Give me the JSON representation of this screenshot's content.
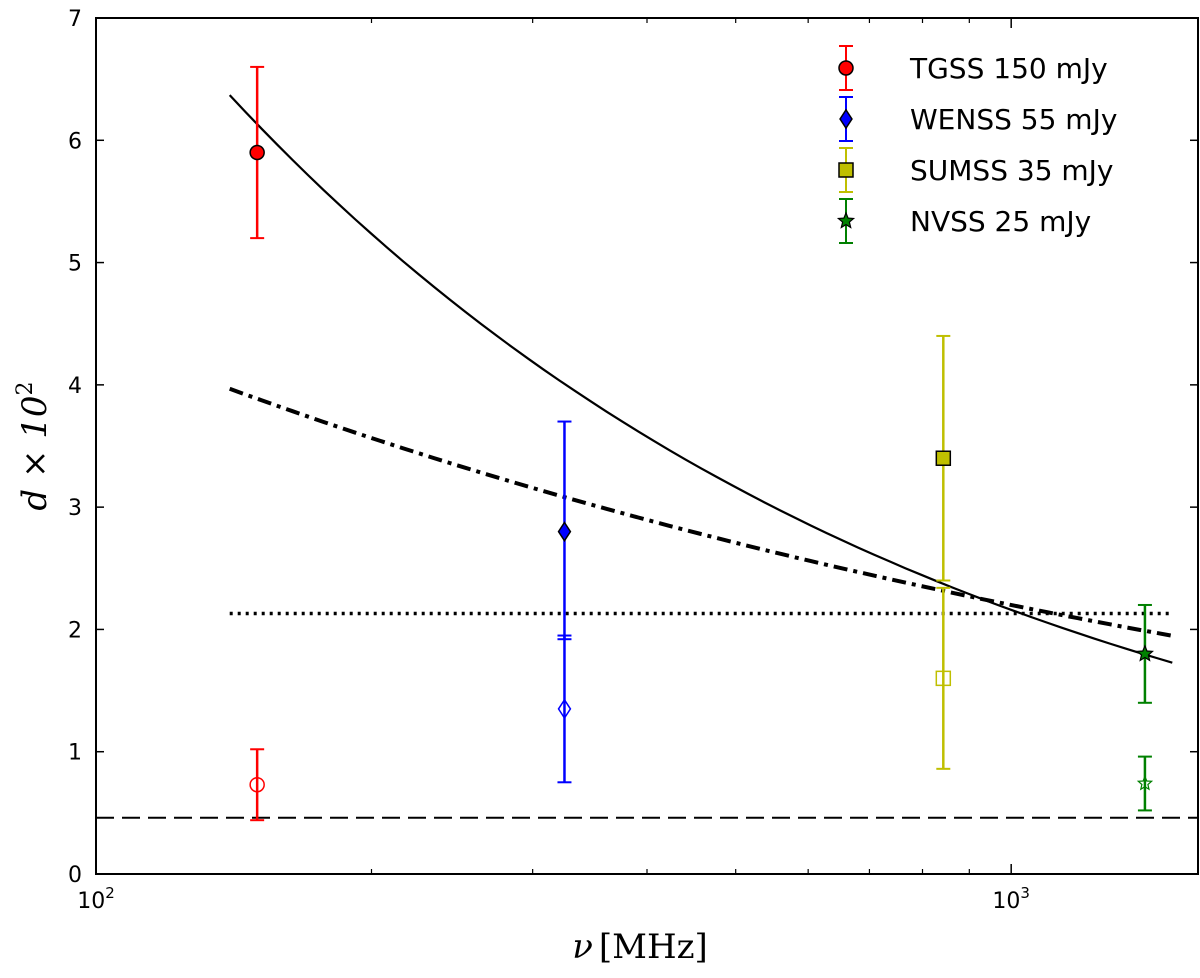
{
  "chart_data": {
    "type": "scatter",
    "xscale": "log",
    "xlim": [
      100,
      1600
    ],
    "ylim": [
      0,
      7
    ],
    "xlabel": "ν [MHz]",
    "xlabel_parts": {
      "symbol": "ν",
      "unit": "[MHz]"
    },
    "ylabel": "d × 10²",
    "ylabel_parts": {
      "main": "d × 10",
      "sup": "2"
    },
    "yticks": [
      {
        "value": 0,
        "label": "0"
      },
      {
        "value": 1,
        "label": "1"
      },
      {
        "value": 2,
        "label": "2"
      },
      {
        "value": 3,
        "label": "3"
      },
      {
        "value": 4,
        "label": "4"
      },
      {
        "value": 5,
        "label": "5"
      },
      {
        "value": 6,
        "label": "6"
      },
      {
        "value": 7,
        "label": "7"
      }
    ],
    "xticks_major": [
      {
        "value": 100,
        "base": "10",
        "exp": "2"
      },
      {
        "value": 1000,
        "base": "10",
        "exp": "3"
      }
    ],
    "xticks_minor": [
      200,
      300,
      400,
      500,
      600,
      700,
      800,
      900
    ],
    "legend_position": "top-right",
    "series": [
      {
        "name": "TGSS 150 mJy",
        "color": "#ff0000",
        "marker": "circle",
        "x": 150,
        "y": 5.9,
        "yerr_low": 0.7,
        "yerr_high": 0.7,
        "open_y": 0.73,
        "open_err_low": 0.29,
        "open_err_high": 0.29
      },
      {
        "name": "WENSS 55 mJy",
        "color": "#0000ff",
        "marker": "diamond",
        "x": 325,
        "y": 2.8,
        "yerr_low": 0.88,
        "yerr_high": 0.9,
        "open_y": 1.35,
        "open_err_low": 0.6,
        "open_err_high": 0.6
      },
      {
        "name": "SUMSS 35 mJy",
        "color": "#bfbf00",
        "marker": "square",
        "x": 843,
        "y": 3.4,
        "yerr_low": 1.0,
        "yerr_high": 1.0,
        "open_y": 1.6,
        "open_err_low": 0.74,
        "open_err_high": 0.74
      },
      {
        "name": "NVSS 25 mJy",
        "color": "#008000",
        "marker": "star",
        "x": 1400,
        "y": 1.8,
        "yerr_low": 0.4,
        "yerr_high": 0.4,
        "open_y": 0.74,
        "open_err_low": 0.22,
        "open_err_high": 0.22
      }
    ],
    "curves": [
      {
        "name": "solid-fit",
        "style": "solid",
        "x_from": 140,
        "x_to": 1500,
        "y_at_1000": 2.16,
        "power": -0.55
      },
      {
        "name": "dash-dot-fit",
        "style": "dashdot",
        "x_from": 140,
        "x_to": 1500,
        "y_at_1000": 2.2,
        "power": -0.3
      },
      {
        "name": "dotted-constant",
        "style": "dotted",
        "x_from": 140,
        "x_to": 1500,
        "y": 2.13
      },
      {
        "name": "dashed-constant",
        "style": "dashed",
        "x_from": 100,
        "x_to": 1600,
        "y": 0.46
      }
    ]
  }
}
